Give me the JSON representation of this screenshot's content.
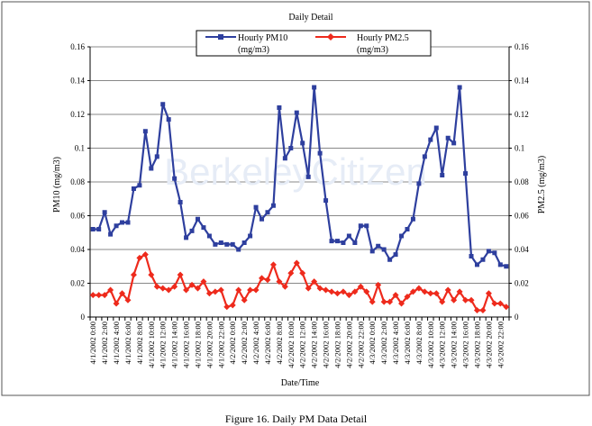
{
  "chart_data": {
    "type": "line",
    "title": "Daily Detail",
    "xlabel": "Date/Time",
    "ylabel": "PM10 (mg/m3)",
    "ylabel_right": "PM2.5 (mg/m3)",
    "ylim": [
      0,
      0.16
    ],
    "ylim_right": [
      0,
      0.16
    ],
    "yticks": [
      "0",
      "0.02",
      "0.04",
      "0.06",
      "0.08",
      "0.1",
      "0.12",
      "0.14",
      "0.16"
    ],
    "grid": true,
    "legend_position": "top-center",
    "x_tick_labels": [
      "4/1/2002 0:00",
      "4/1/2002 2:00",
      "4/1/2002 4:00",
      "4/1/2002 6:00",
      "4/1/2002 8:00",
      "4/1/2002 10:00",
      "4/1/2002 12:00",
      "4/1/2002 14:00",
      "4/1/2002 16:00",
      "4/1/2002 18:00",
      "4/1/2002 20:00",
      "4/1/2002 22:00",
      "4/2/2002 0:00",
      "4/2/2002 2:00",
      "4/2/2002 4:00",
      "4/2/2002 6:00",
      "4/2/2002 8:00",
      "4/2/2002 10:00",
      "4/2/2002 12:00",
      "4/2/2002 14:00",
      "4/2/2002 16:00",
      "4/2/2002 18:00",
      "4/2/2002 20:00",
      "4/2/2002 22:00",
      "4/3/2002 0:00",
      "4/3/2002 2:00",
      "4/3/2002 4:00",
      "4/3/2002 6:00",
      "4/3/2002 8:00",
      "4/3/2002 10:00",
      "4/3/2002 12:00",
      "4/3/2002 14:00",
      "4/3/2002 16:00",
      "4/3/2002 18:00",
      "4/3/2002 20:00",
      "4/3/2002 22:00"
    ],
    "series": [
      {
        "name": "Hourly PM10",
        "unit": "(mg/m3)",
        "color": "#2e3f9e",
        "marker": "square",
        "values": [
          0.052,
          0.052,
          0.062,
          0.049,
          0.054,
          0.056,
          0.056,
          0.076,
          0.078,
          0.11,
          0.088,
          0.095,
          0.126,
          0.117,
          0.082,
          0.068,
          0.047,
          0.051,
          0.058,
          0.053,
          0.048,
          0.043,
          0.044,
          0.043,
          0.043,
          0.04,
          0.044,
          0.048,
          0.065,
          0.058,
          0.062,
          0.066,
          0.124,
          0.094,
          0.1,
          0.121,
          0.103,
          0.083,
          0.136,
          0.097,
          0.069,
          0.045,
          0.045,
          0.044,
          0.048,
          0.044,
          0.054,
          0.054,
          0.039,
          0.042,
          0.04,
          0.034,
          0.037,
          0.048,
          0.052,
          0.058,
          0.079,
          0.095,
          0.105,
          0.112,
          0.084,
          0.106,
          0.103,
          0.136,
          0.085,
          0.036,
          0.031,
          0.034,
          0.039,
          0.038,
          0.031,
          0.03
        ]
      },
      {
        "name": "Hourly PM2.5",
        "unit": "(mg/m3)",
        "color": "#ee2a1c",
        "marker": "diamond",
        "values": [
          0.013,
          0.013,
          0.013,
          0.016,
          0.008,
          0.014,
          0.01,
          0.025,
          0.035,
          0.037,
          0.025,
          0.018,
          0.017,
          0.016,
          0.018,
          0.025,
          0.016,
          0.019,
          0.017,
          0.021,
          0.014,
          0.015,
          0.016,
          0.006,
          0.007,
          0.016,
          0.01,
          0.016,
          0.016,
          0.023,
          0.022,
          0.031,
          0.021,
          0.018,
          0.026,
          0.032,
          0.026,
          0.017,
          0.021,
          0.017,
          0.016,
          0.015,
          0.014,
          0.015,
          0.013,
          0.015,
          0.018,
          0.015,
          0.009,
          0.019,
          0.009,
          0.009,
          0.013,
          0.008,
          0.012,
          0.015,
          0.017,
          0.015,
          0.014,
          0.014,
          0.009,
          0.016,
          0.01,
          0.015,
          0.01,
          0.01,
          0.004,
          0.004,
          0.014,
          0.008,
          0.008,
          0.006
        ]
      }
    ]
  },
  "watermark": "BerkeleyCitizen",
  "caption": "Figure 16. Daily PM Data Detail"
}
